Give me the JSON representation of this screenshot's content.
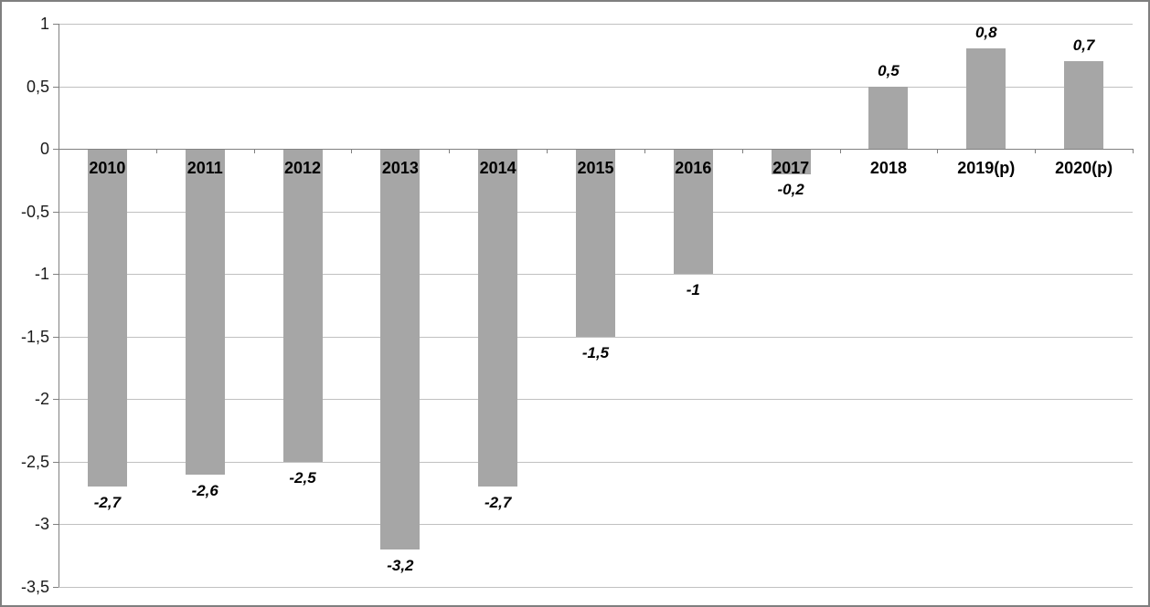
{
  "chart_data": {
    "type": "bar",
    "title": "",
    "xlabel": "",
    "ylabel": "",
    "categories": [
      "2010",
      "2011",
      "2012",
      "2013",
      "2014",
      "2015",
      "2016",
      "2017",
      "2018",
      "2019(p)",
      "2020(p)"
    ],
    "values": [
      -2.7,
      -2.6,
      -2.5,
      -3.2,
      -2.7,
      -1.5,
      -1,
      -0.2,
      0.5,
      0.8,
      0.7
    ],
    "value_labels": [
      "-2,7",
      "-2,6",
      "-2,5",
      "-3,2",
      "-2,7",
      "-1,5",
      "-1",
      "-0,2",
      "0,5",
      "0,8",
      "0,7"
    ],
    "y_ticks": [
      1,
      0.5,
      0,
      -0.5,
      -1,
      -1.5,
      -2,
      -2.5,
      -3,
      -3.5
    ],
    "y_tick_labels": [
      "1",
      "0,5",
      "0",
      "-0,5",
      "-1",
      "-1,5",
      "-2",
      "-2,5",
      "-3",
      "-3,5"
    ],
    "ylim": [
      -3.5,
      1
    ],
    "grid": true,
    "legend": null,
    "colors": {
      "bar": "#a6a6a6",
      "gridline": "#c0c0c0",
      "axis": "#808080",
      "text": "#1a1a1a",
      "frame_border": "#7f7f7f",
      "background": "#ffffff"
    }
  }
}
